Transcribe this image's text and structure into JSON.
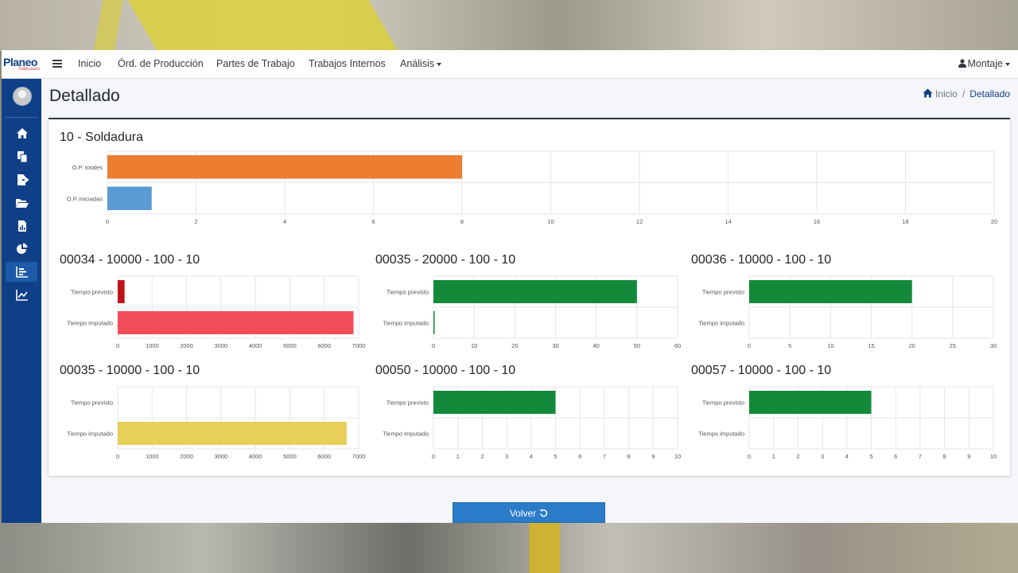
{
  "brand": {
    "name": "Planeo",
    "sub": "Fabricación"
  },
  "nav": {
    "items": [
      "Inicio",
      "Órd. de Producción",
      "Partes de Trabajo",
      "Trabajos Internos",
      "Análisis"
    ],
    "user": "Montaje"
  },
  "page": {
    "title": "Detallado"
  },
  "breadcrumb": {
    "home": "Inicio",
    "current": "Detallado"
  },
  "sidebar": {
    "icons": [
      "home-icon",
      "copy-icon",
      "file-export-icon",
      "folder-open-icon",
      "file-chart-icon",
      "pie-chart-icon",
      "bar-chart-icon",
      "line-chart-icon"
    ],
    "active_index": 6
  },
  "buttons": {
    "volver": "Volver"
  },
  "colors": {
    "orange": "#ed7d31",
    "blue": "#5b9bd5",
    "darkred": "#c0141c",
    "red": "#f44d5a",
    "green": "#128a3a",
    "yellow": "#e7cf58",
    "sidebar": "#0f3f87"
  },
  "chart_data": [
    {
      "type": "bar",
      "orientation": "horizontal",
      "title": "10 - Soldadura",
      "categories": [
        "O.P. totales",
        "O.P. iniciadas"
      ],
      "values": [
        8,
        1
      ],
      "colors": [
        "#ed7d31",
        "#5b9bd5"
      ],
      "xlim": [
        0,
        20
      ],
      "ticks": [
        0,
        2,
        4,
        6,
        8,
        10,
        12,
        14,
        16,
        18,
        20
      ],
      "grid": true
    },
    {
      "type": "bar",
      "orientation": "horizontal",
      "title": "00034 - 10000 - 100 - 10",
      "categories": [
        "Tiempo previsto",
        "Tiempo imputado"
      ],
      "values": [
        200,
        6850
      ],
      "colors": [
        "#c0141c",
        "#f44d5a"
      ],
      "xlim": [
        0,
        7000
      ],
      "ticks": [
        0,
        1000,
        2000,
        3000,
        4000,
        5000,
        6000,
        7000
      ],
      "grid": true
    },
    {
      "type": "bar",
      "orientation": "horizontal",
      "title": "00035 - 20000 - 100 - 10",
      "categories": [
        "Tiempo previsto",
        "Tiempo imputado"
      ],
      "values": [
        50,
        0.3
      ],
      "colors": [
        "#128a3a",
        "#128a3a"
      ],
      "xlim": [
        0,
        60
      ],
      "ticks": [
        0,
        10,
        20,
        30,
        40,
        50,
        60
      ],
      "grid": true
    },
    {
      "type": "bar",
      "orientation": "horizontal",
      "title": "00036 - 10000 - 100 - 10",
      "categories": [
        "Tiempo previsto",
        "Tiempo imputado"
      ],
      "values": [
        20,
        0
      ],
      "colors": [
        "#128a3a",
        "#128a3a"
      ],
      "xlim": [
        0,
        30
      ],
      "ticks": [
        0,
        5,
        10,
        15,
        20,
        25,
        30
      ],
      "grid": true
    },
    {
      "type": "bar",
      "orientation": "horizontal",
      "title": "00035 - 10000 - 100 - 10",
      "categories": [
        "Tiempo previsto",
        "Tiempo imputado"
      ],
      "values": [
        0,
        6650
      ],
      "colors": [
        "#e7cf58",
        "#e7cf58"
      ],
      "xlim": [
        0,
        7000
      ],
      "ticks": [
        0,
        1000,
        2000,
        3000,
        4000,
        5000,
        6000,
        7000
      ],
      "grid": true
    },
    {
      "type": "bar",
      "orientation": "horizontal",
      "title": "00050 - 10000 - 100 - 10",
      "categories": [
        "Tiempo previsto",
        "Tiempo imputado"
      ],
      "values": [
        5,
        0
      ],
      "colors": [
        "#128a3a",
        "#128a3a"
      ],
      "xlim": [
        0,
        10
      ],
      "ticks": [
        0,
        1,
        2,
        3,
        4,
        5,
        6,
        7,
        8,
        9,
        10
      ],
      "grid": true
    },
    {
      "type": "bar",
      "orientation": "horizontal",
      "title": "00057 - 10000 - 100 - 10",
      "categories": [
        "Tiempo previsto",
        "Tiempo imputado"
      ],
      "values": [
        5,
        0
      ],
      "colors": [
        "#128a3a",
        "#128a3a"
      ],
      "xlim": [
        0,
        10
      ],
      "ticks": [
        0,
        1,
        2,
        3,
        4,
        5,
        6,
        7,
        8,
        9,
        10
      ],
      "grid": true
    }
  ]
}
